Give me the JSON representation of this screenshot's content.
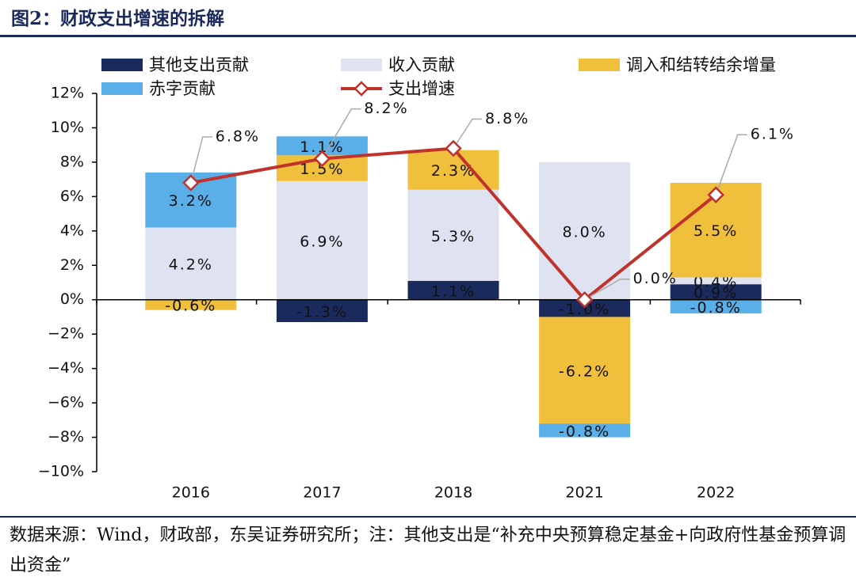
{
  "title": "图2：财政支出增速的拆解",
  "chart_data": {
    "type": "bar",
    "stacked": true,
    "legend": "top",
    "categories": [
      "2016",
      "2017",
      "2018",
      "2021",
      "2022"
    ],
    "series": [
      {
        "name": "其他支出贡献",
        "color": "#1b2a5c",
        "values": [
          null,
          -1.3,
          1.1,
          -1.0,
          0.9
        ],
        "value_labels": [
          null,
          "-1.3%",
          "1.1%",
          "-1.0%",
          "0.9%"
        ]
      },
      {
        "name": "收入贡献",
        "color": "#dfe2f0",
        "values": [
          4.2,
          6.9,
          5.3,
          8.0,
          0.4
        ],
        "value_labels": [
          "4.2%",
          "6.9%",
          "5.3%",
          "8.0%",
          "0.4%"
        ]
      },
      {
        "name": "调入和结转结余增量",
        "color": "#f0c03c",
        "values": [
          -0.6,
          1.5,
          2.3,
          -6.2,
          5.5
        ],
        "value_labels": [
          "-0.6%",
          "1.5%",
          "2.3%",
          "-6.2%",
          "5.5%"
        ]
      },
      {
        "name": "赤字贡献",
        "color": "#5aafe8",
        "values": [
          3.2,
          1.1,
          null,
          -0.8,
          -0.8
        ],
        "value_labels": [
          "3.2%",
          "1.1%",
          null,
          "-0.8%",
          "-0.8%"
        ]
      },
      {
        "name": "支出增速",
        "type": "line",
        "color": "#c0322b",
        "values": [
          6.8,
          8.2,
          8.8,
          0.0,
          6.1
        ],
        "value_labels": [
          "6.8%",
          "8.2%",
          "8.8%",
          "0.0%",
          "6.1%"
        ]
      }
    ],
    "ylim": [
      -10,
      12
    ],
    "yticks": [
      {
        "value": -10,
        "label": "−10%"
      },
      {
        "value": -8,
        "label": "−8%"
      },
      {
        "value": -6,
        "label": "−6%"
      },
      {
        "value": -4,
        "label": "−4%"
      },
      {
        "value": -2,
        "label": "−2%"
      },
      {
        "value": 0,
        "label": "0%"
      },
      {
        "value": 2,
        "label": "2%"
      },
      {
        "value": 4,
        "label": "4%"
      },
      {
        "value": 6,
        "label": "6%"
      },
      {
        "value": 8,
        "label": "8%"
      },
      {
        "value": 10,
        "label": "10%"
      },
      {
        "value": 12,
        "label": "12%"
      }
    ]
  },
  "source": "数据来源：Wind，财政部，东吴证券研究所；注：其他支出是“补充中央预算稳定基金+向政府性基金预算调出资金”"
}
